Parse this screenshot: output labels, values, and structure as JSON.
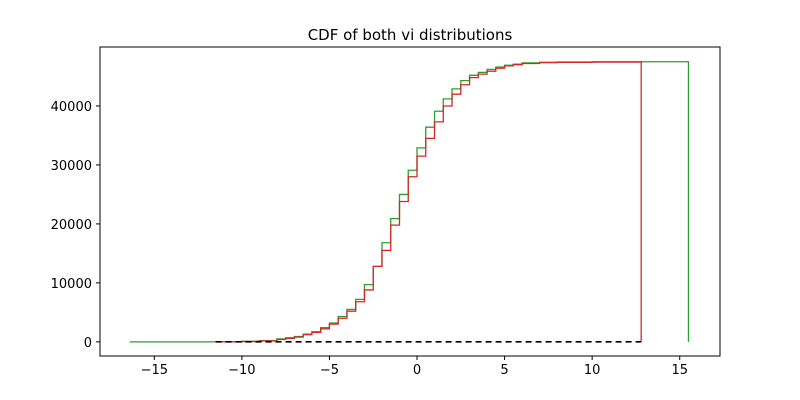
{
  "chart_data": {
    "type": "line",
    "title": "CDF of both vi distributions",
    "xlabel": "",
    "ylabel": "",
    "xlim": [
      -18.1,
      17.3
    ],
    "ylim": [
      -2400,
      50000
    ],
    "xticks": [
      -15,
      -10,
      -5,
      0,
      5,
      10,
      15
    ],
    "yticks": [
      0,
      10000,
      20000,
      30000,
      40000
    ],
    "xtick_labels": [
      "−15",
      "−10",
      "−5",
      "0",
      "5",
      "10",
      "15"
    ],
    "ytick_labels": [
      "0",
      "10000",
      "20000",
      "30000",
      "40000"
    ],
    "grid": false,
    "legend": "none",
    "series": [
      {
        "color": "#2ca02c",
        "style": "step",
        "x": [
          -16.4,
          -11.5,
          -10.0,
          -9.0,
          -8.0,
          -7.5,
          -7.0,
          -6.5,
          -6.0,
          -5.5,
          -5.0,
          -4.5,
          -4.0,
          -3.5,
          -3.0,
          -2.5,
          -2.0,
          -1.5,
          -1.0,
          -0.5,
          0.0,
          0.5,
          1.0,
          1.5,
          2.0,
          2.5,
          3.0,
          3.5,
          4.0,
          4.5,
          5.0,
          5.5,
          6.0,
          7.0,
          8.0,
          10.0,
          15.5
        ],
        "y": [
          0,
          0,
          100,
          200,
          500,
          700,
          900,
          1300,
          1700,
          2400,
          3200,
          4300,
          5500,
          7200,
          9700,
          12800,
          16800,
          20900,
          25000,
          29100,
          32900,
          36400,
          39100,
          41200,
          42900,
          44300,
          45200,
          45700,
          46200,
          46600,
          46900,
          47100,
          47300,
          47400,
          47450,
          47500,
          0
        ]
      },
      {
        "color": "#d62728",
        "style": "step",
        "x": [
          -11.5,
          -10.0,
          -9.0,
          -8.0,
          -7.5,
          -7.0,
          -6.5,
          -6.0,
          -5.5,
          -5.0,
          -4.5,
          -4.0,
          -3.5,
          -3.0,
          -2.5,
          -2.0,
          -1.5,
          -1.0,
          -0.5,
          0.0,
          0.5,
          1.0,
          1.5,
          2.0,
          2.5,
          3.0,
          3.5,
          4.0,
          4.5,
          5.0,
          5.5,
          6.0,
          7.0,
          8.0,
          10.0,
          12.8
        ],
        "y": [
          0,
          50,
          150,
          400,
          600,
          800,
          1200,
          1600,
          2200,
          3000,
          4000,
          5200,
          6800,
          8800,
          12800,
          15500,
          19800,
          23800,
          28000,
          31500,
          34500,
          37300,
          40000,
          42000,
          43600,
          44800,
          45400,
          45900,
          46400,
          46800,
          47000,
          47200,
          47350,
          47400,
          47450,
          0
        ]
      },
      {
        "color": "#000000",
        "style": "dashed",
        "x": [
          -11.5,
          12.8
        ],
        "y": [
          0,
          0
        ]
      }
    ]
  }
}
